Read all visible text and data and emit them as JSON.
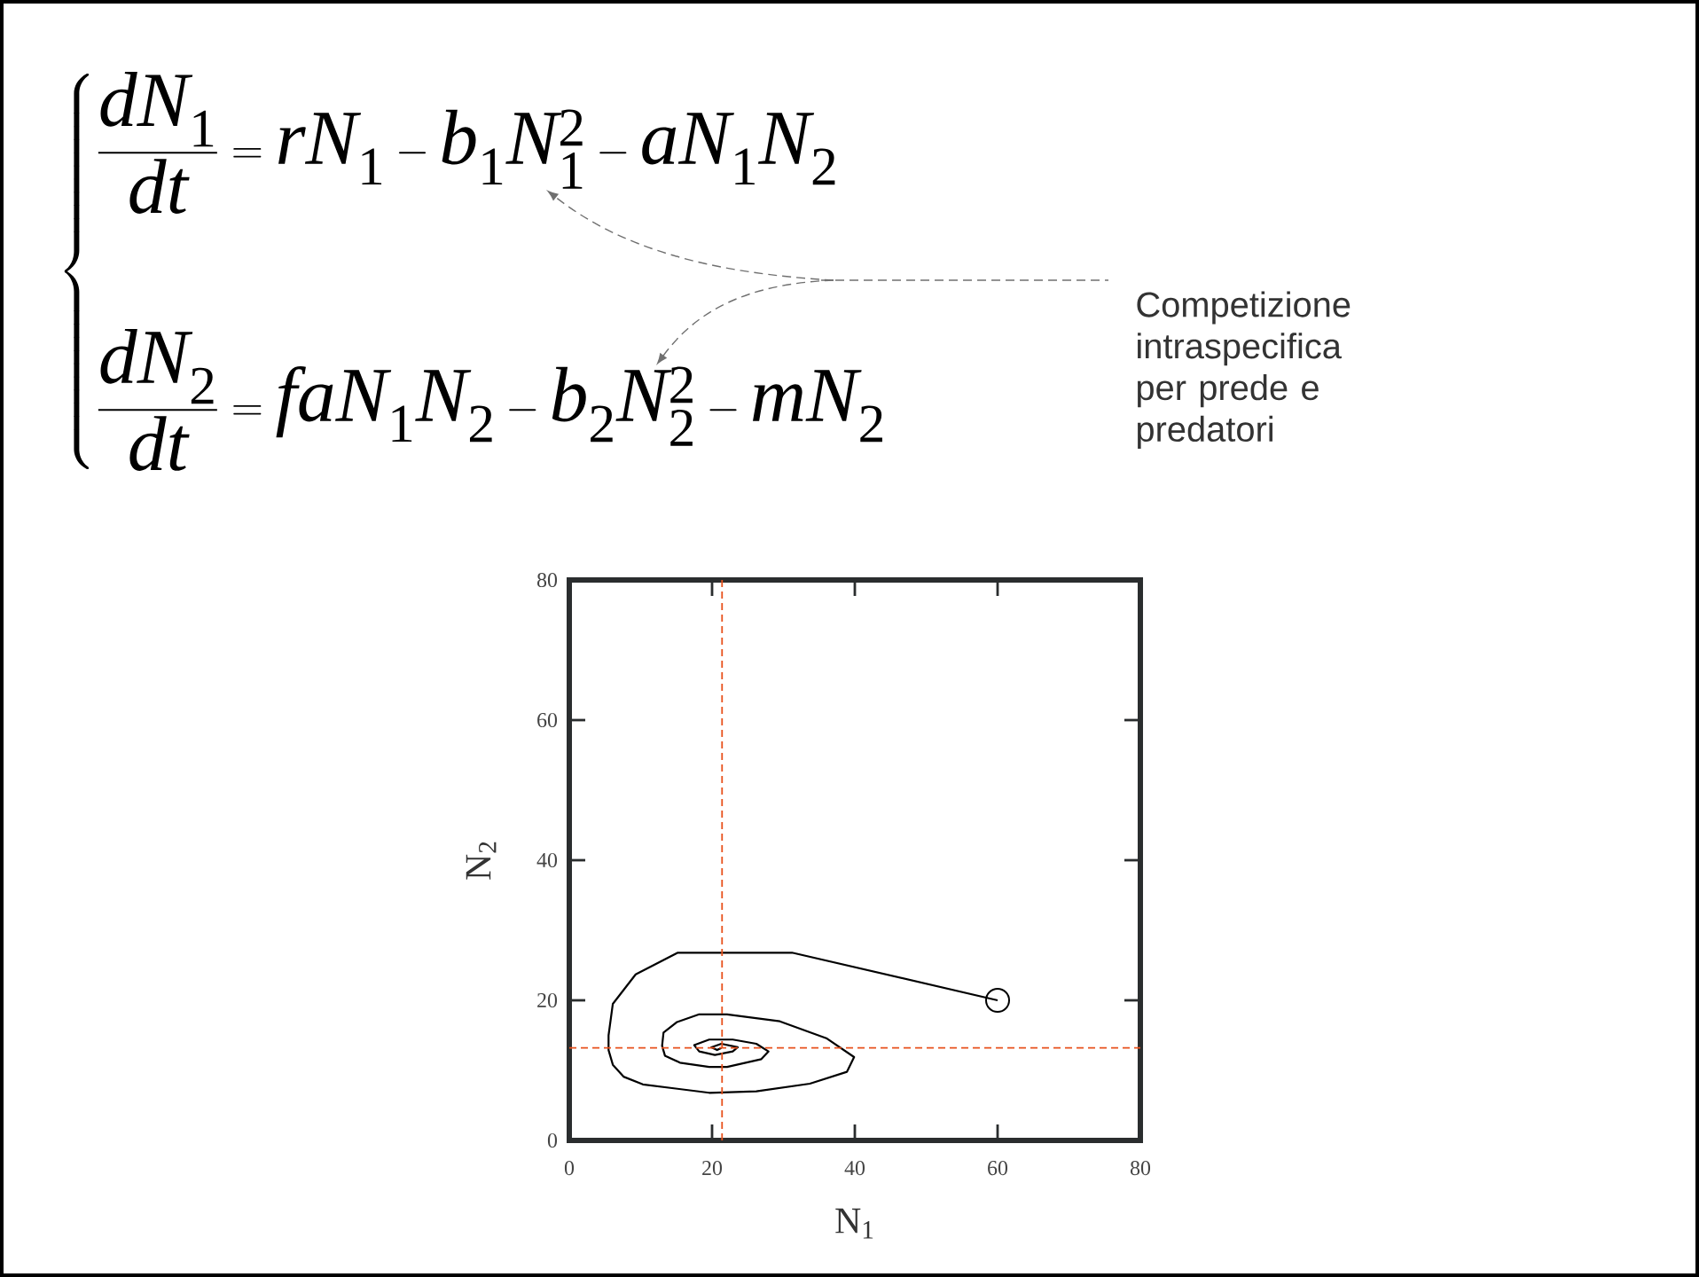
{
  "chart_data": {
    "type": "line",
    "annotations": [
      "\\left\\{\\begin{aligned}&\\dfrac{dN_1}{dt}=rN_1-b_1N_1^2-aN_1N_2\\\\&\\dfrac{dN_2}{dt}=faN_1N_2-b_2N_2^2-mN_2\\end{aligned}\\right.",
      "Competizione intraspecifica per prede e predatori"
    ],
    "xlabel": "N$_{1}$",
    "ylabel": "N$_{2}$",
    "xlim": [
      0,
      80
    ],
    "ylim": [
      0,
      80
    ],
    "xticks": [
      0,
      20,
      40,
      60,
      80
    ],
    "yticks": [
      0,
      20,
      40,
      60,
      80
    ],
    "series": [
      {
        "color": "#000000",
        "marker": "none",
        "x": [
          60,
          31.2,
          15.2,
          9.3,
          6.1,
          5.5,
          5.5,
          6.1,
          7.6,
          10.3,
          19.6,
          26.2,
          33.7,
          38.9,
          39.9,
          36.0,
          29.5,
          22.1,
          18.2,
          15.1,
          13.2,
          13.0,
          13.4,
          15.5,
          19.6,
          22.1,
          26.9,
          27.9,
          26.2,
          22.9,
          19.6,
          17.5,
          18.2,
          20.4,
          22.9,
          23.6,
          21.3,
          19.9,
          20.7,
          21.3
        ],
        "values": [
          20,
          26.8,
          26.8,
          23.7,
          19.5,
          15.0,
          12.9,
          10.8,
          9.1,
          8.0,
          6.8,
          7.0,
          8.1,
          9.8,
          11.9,
          14.6,
          17.0,
          18.0,
          18.0,
          16.9,
          15.4,
          13.5,
          12.1,
          11.1,
          10.5,
          10.5,
          11.6,
          12.7,
          13.8,
          14.4,
          14.4,
          13.6,
          12.7,
          12.2,
          12.7,
          13.3,
          13.8,
          13.3,
          12.9,
          13.2
        ]
      },
      {
        "type": "scatter",
        "color": "#000000",
        "marker": "circle",
        "x": [
          60
        ],
        "values": [
          20
        ]
      }
    ],
    "ref_lines": [
      {
        "axis": "x",
        "value": 21.4,
        "color": "#e8511c",
        "line_style": "dashed"
      },
      {
        "axis": "y",
        "value": 13.2,
        "color": "#e8511c",
        "line_style": "dashed"
      }
    ]
  }
}
